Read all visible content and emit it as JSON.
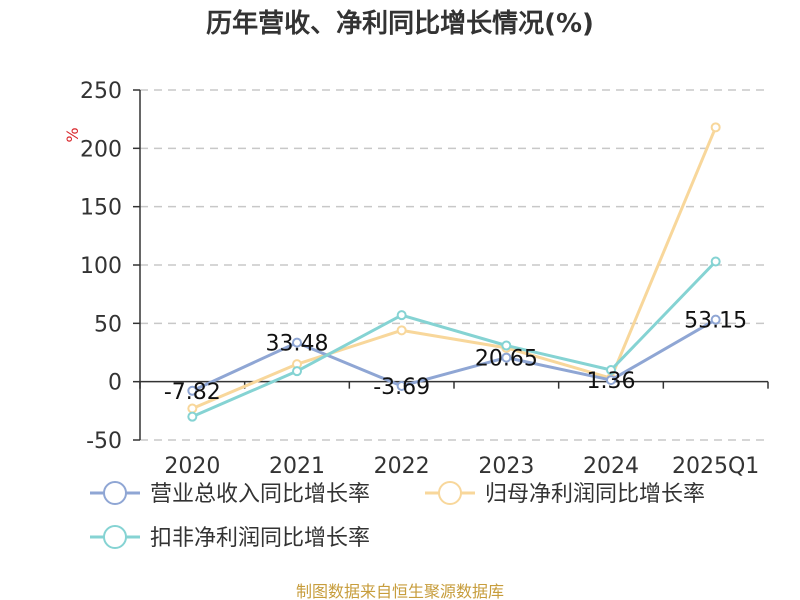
{
  "chart_data": {
    "type": "line",
    "title": "历年营收、净利同比增长情况(%)",
    "ylabel": "%",
    "categories": [
      "2020",
      "2021",
      "2022",
      "2023",
      "2024",
      "2025Q1"
    ],
    "ylim": [
      -50,
      250
    ],
    "yticks": [
      -50,
      0,
      50,
      100,
      150,
      200,
      250
    ],
    "grid": true,
    "legend_position": "bottom",
    "series": [
      {
        "name": "营业总收入同比增长率",
        "color": "#8fa6d4",
        "values": [
          -7.82,
          33.48,
          -3.69,
          20.65,
          1.36,
          53.15
        ],
        "data_labels": [
          "-7.82",
          "33.48",
          "-3.69",
          "20.65",
          "1.36",
          "53.15"
        ]
      },
      {
        "name": "归母净利润同比增长率",
        "color": "#f8d79b",
        "values": [
          -23,
          15,
          44,
          29,
          3,
          218
        ]
      },
      {
        "name": "扣非净利润同比增长率",
        "color": "#85d3d3",
        "values": [
          -30,
          9,
          57,
          31,
          10,
          103
        ]
      }
    ]
  },
  "footer": {
    "source": "制图数据来自恒生聚源数据库"
  }
}
